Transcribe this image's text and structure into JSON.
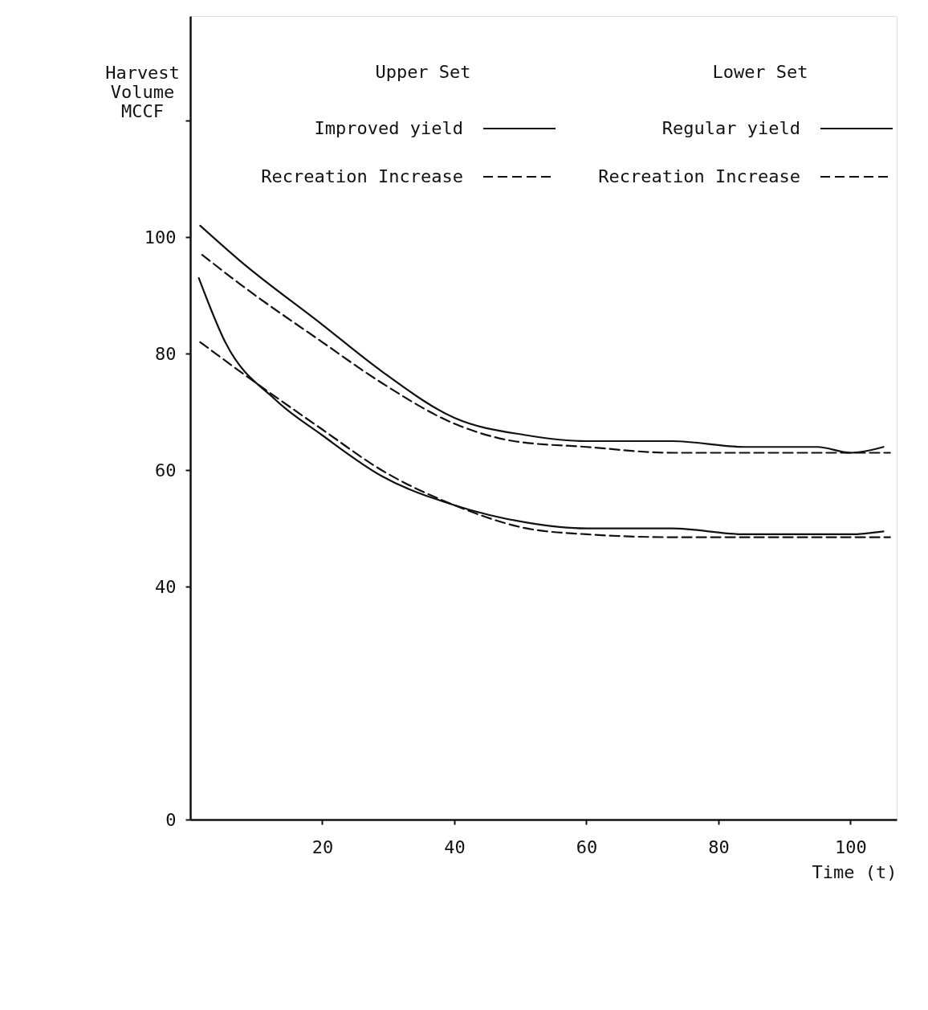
{
  "chart_data": {
    "type": "line",
    "xlabel": "Time (t)",
    "ylabel": "Harvest Volume MCCF",
    "xlim": [
      0,
      107
    ],
    "ylim": [
      0,
      138
    ],
    "xticks": [
      20,
      40,
      60,
      80,
      100
    ],
    "yticks": [
      0,
      40,
      60,
      80,
      100,
      {
        "value": 120,
        "label": null
      }
    ],
    "grid": false,
    "marker": "none",
    "legend": "top",
    "annotations": [
      "Upper Set",
      "Lower Set"
    ],
    "series": [
      {
        "name": "Improved yield",
        "color": "#111111",
        "line_style": "solid",
        "x": [
          1.5,
          7.5,
          20,
          29,
          40,
          51,
          60,
          73,
          84,
          95,
          100,
          105
        ],
        "values": [
          102,
          96,
          85,
          77,
          69,
          66,
          65,
          65,
          64,
          64,
          63,
          64
        ]
      },
      {
        "name": "Recreation Increase",
        "color": "#111111",
        "line_style": "dashed",
        "x": [
          1.8,
          7.5,
          20,
          29,
          40,
          49,
          60,
          73,
          84,
          95,
          106
        ],
        "values": [
          97,
          92,
          82,
          75,
          68,
          65,
          64,
          63,
          63,
          63,
          63
        ]
      },
      {
        "name": "Regular yield",
        "color": "#111111",
        "line_style": "solid",
        "x": [
          1.3,
          5.3,
          13,
          20,
          29,
          40,
          51,
          60,
          73,
          84,
          95,
          100,
          105
        ],
        "values": [
          93,
          82,
          72,
          66,
          59,
          54,
          51,
          50,
          50,
          49,
          49,
          49,
          49.5
        ]
      },
      {
        "name": "Recreation Increase",
        "color": "#111111",
        "line_style": "dashed",
        "x": [
          1.5,
          7.5,
          20,
          29,
          40,
          51,
          60,
          73,
          95,
          106
        ],
        "values": [
          82,
          77,
          67,
          60,
          54,
          50,
          49,
          48.5,
          48.5,
          48.5
        ]
      }
    ]
  }
}
